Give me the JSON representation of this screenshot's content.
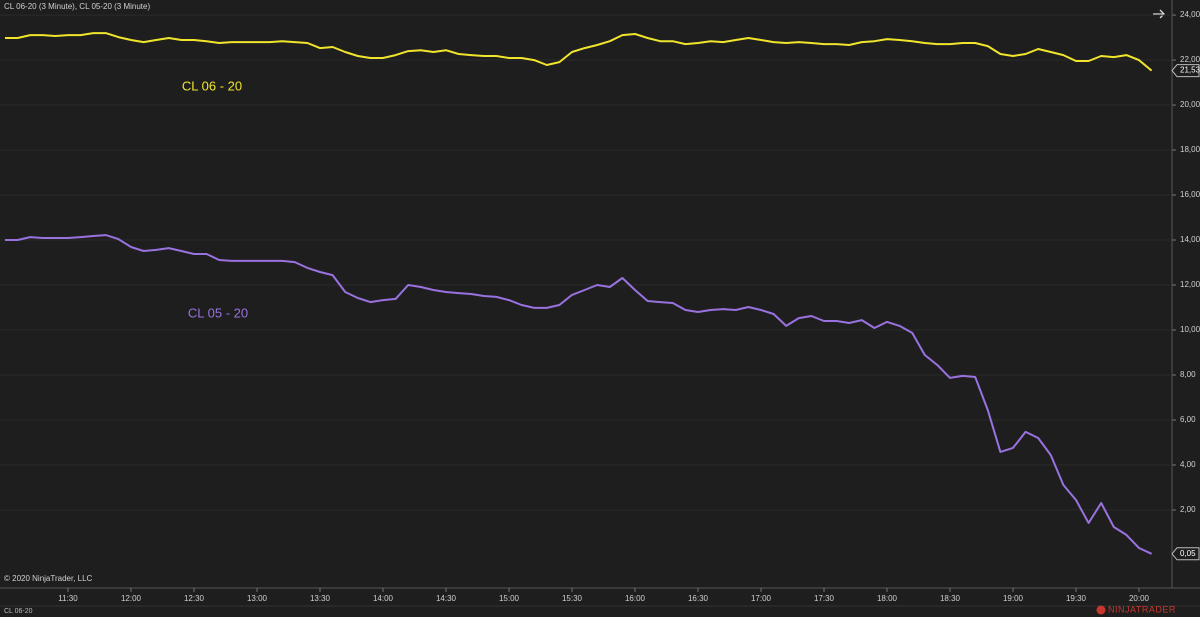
{
  "chart_data": {
    "type": "line",
    "title": "CL 06-20 (3 Minute), CL 05-20 (3 Minute)",
    "copyright": "© 2020 NinjaTrader, LLC",
    "tab": "CL 06-20",
    "logo": "NINJATRADER",
    "categories": [
      null,
      null,
      null,
      null,
      null,
      "11:30",
      null,
      null,
      null,
      null,
      "12:00",
      null,
      null,
      null,
      null,
      "12:30",
      null,
      null,
      null,
      null,
      "13:00",
      null,
      null,
      null,
      null,
      "13:30",
      null,
      null,
      null,
      null,
      "14:00",
      null,
      null,
      null,
      null,
      "14:30",
      null,
      null,
      null,
      null,
      "15:00",
      null,
      null,
      null,
      null,
      "15:30",
      null,
      null,
      null,
      null,
      "16:00",
      null,
      null,
      null,
      null,
      "16:30",
      null,
      null,
      null,
      null,
      "17:00",
      null,
      null,
      null,
      null,
      "17:30",
      null,
      null,
      null,
      null,
      "18:00",
      null,
      null,
      null,
      null,
      "18:30",
      null,
      null,
      null,
      null,
      "19:00",
      null,
      null,
      null,
      null,
      "19:30",
      null,
      null,
      null,
      null,
      "20:00",
      null
    ],
    "series": [
      {
        "name": "CL 06 - 20",
        "color": "#f0e52c",
        "last_value_label": "21,53",
        "values": [
          22.98,
          22.98,
          23.11,
          23.11,
          23.07,
          23.11,
          23.11,
          23.2,
          23.2,
          23.02,
          22.89,
          22.8,
          22.89,
          22.98,
          22.89,
          22.89,
          22.84,
          22.76,
          22.8,
          22.8,
          22.8,
          22.8,
          22.84,
          22.8,
          22.76,
          22.53,
          22.58,
          22.36,
          22.18,
          22.09,
          22.09,
          22.22,
          22.4,
          22.44,
          22.36,
          22.44,
          22.27,
          22.22,
          22.18,
          22.18,
          22.09,
          22.09,
          22.0,
          21.78,
          21.91,
          22.36,
          22.53,
          22.67,
          22.84,
          23.11,
          23.16,
          22.98,
          22.84,
          22.84,
          22.71,
          22.76,
          22.84,
          22.8,
          22.89,
          22.98,
          22.89,
          22.8,
          22.76,
          22.8,
          22.76,
          22.71,
          22.71,
          22.67,
          22.8,
          22.84,
          22.93,
          22.89,
          22.84,
          22.76,
          22.71,
          22.71,
          22.76,
          22.76,
          22.62,
          22.27,
          22.18,
          22.27,
          22.49,
          22.36,
          22.22,
          21.96,
          21.96,
          22.18,
          22.13,
          22.22,
          22.0,
          21.53
        ]
      },
      {
        "name": "CL 05 - 20",
        "color": "#9a72e0",
        "last_value_label": "0,05",
        "values": [
          14.0,
          14.0,
          14.13,
          14.09,
          14.09,
          14.09,
          14.13,
          14.18,
          14.22,
          14.04,
          13.69,
          13.51,
          13.56,
          13.64,
          13.51,
          13.38,
          13.38,
          13.11,
          13.07,
          13.07,
          13.07,
          13.07,
          13.07,
          13.02,
          12.76,
          12.58,
          12.44,
          11.69,
          11.42,
          11.24,
          11.33,
          11.38,
          12.0,
          11.91,
          11.78,
          11.69,
          11.64,
          11.6,
          11.51,
          11.47,
          11.33,
          11.11,
          10.98,
          10.98,
          11.11,
          11.56,
          11.78,
          12.0,
          11.91,
          12.31,
          11.78,
          11.29,
          11.24,
          11.2,
          10.89,
          10.8,
          10.89,
          10.93,
          10.89,
          11.02,
          10.89,
          10.71,
          10.18,
          10.53,
          10.62,
          10.4,
          10.4,
          10.31,
          10.44,
          10.09,
          10.36,
          10.18,
          9.87,
          8.89,
          8.44,
          7.87,
          7.96,
          7.91,
          6.44,
          4.58,
          4.76,
          5.47,
          5.2,
          4.44,
          3.11,
          2.44,
          1.42,
          2.31,
          1.24,
          0.89,
          0.31,
          0.05
        ]
      }
    ],
    "ylim": [
      -1.47,
      24.67
    ],
    "yticks": [
      {
        "value": 2,
        "label": "2,00"
      },
      {
        "value": 4,
        "label": "4,00"
      },
      {
        "value": 6,
        "label": "6,00"
      },
      {
        "value": 8,
        "label": "8,00"
      },
      {
        "value": 10,
        "label": "10,00"
      },
      {
        "value": 12,
        "label": "12,00"
      },
      {
        "value": 14,
        "label": "14,00"
      },
      {
        "value": 16,
        "label": "16,00"
      },
      {
        "value": 18,
        "label": "18,00"
      },
      {
        "value": 20,
        "label": "20,00"
      },
      {
        "value": 22,
        "label": "22,00"
      },
      {
        "value": 24,
        "label": "24,00"
      }
    ],
    "grid": true
  }
}
